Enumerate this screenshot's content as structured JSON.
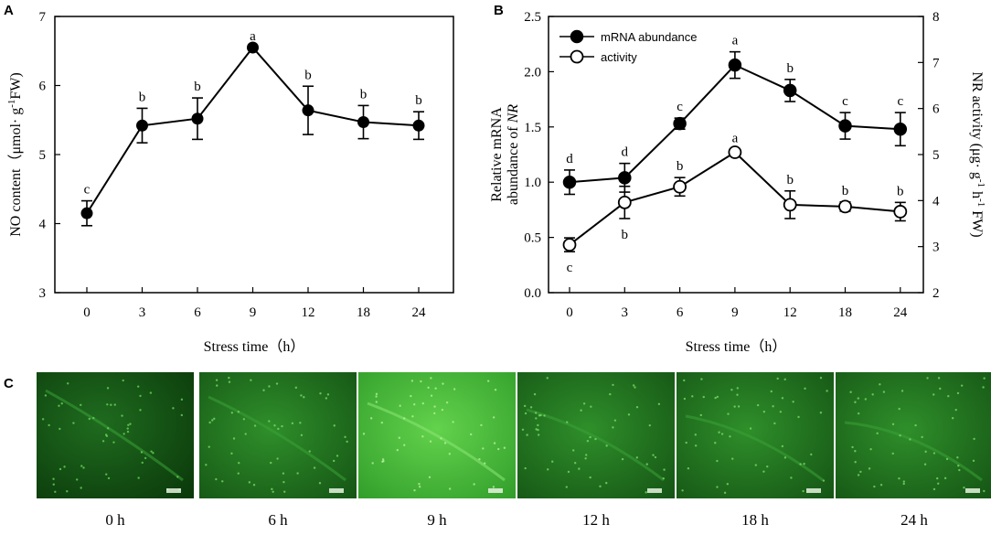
{
  "colors": {
    "line": "#000000",
    "marker_filled": "#000000",
    "marker_open": "#ffffff",
    "background": "#ffffff",
    "tile_dark": "#0a3a0a",
    "tile_mid": "#1f7a1f",
    "tile_bright": "#49c03a"
  },
  "chart_data": [
    {
      "panel": "A",
      "type": "line",
      "categories": [
        "0",
        "3",
        "6",
        "9",
        "12",
        "18",
        "24"
      ],
      "series": [
        {
          "name": "NO content",
          "marker": "filled-circle",
          "values": [
            4.15,
            5.42,
            5.52,
            6.55,
            5.64,
            5.47,
            5.42
          ],
          "errors": [
            0.18,
            0.25,
            0.3,
            0.0,
            0.35,
            0.24,
            0.2
          ],
          "labels": [
            "c",
            "b",
            "b",
            "a",
            "b",
            "b",
            "b"
          ]
        }
      ],
      "xlabel": "Stress time（h）",
      "ylabel_main": "NO content（μmol· g",
      "ylabel_sup": "-1",
      "ylabel_sub": "FW)",
      "ylim": [
        3,
        7
      ],
      "yticks": [
        "3",
        "4",
        "5",
        "6",
        "7"
      ]
    },
    {
      "panel": "B",
      "type": "line",
      "categories": [
        "0",
        "3",
        "6",
        "9",
        "12",
        "18",
        "24"
      ],
      "legend": [
        "mRNA abundance",
        "activity"
      ],
      "legend_position": "top-left",
      "series": [
        {
          "name": "mRNA abundance",
          "marker": "filled-circle",
          "axis": "left",
          "values": [
            1.0,
            1.04,
            1.53,
            2.06,
            1.83,
            1.51,
            1.48
          ],
          "errors": [
            0.11,
            0.13,
            0.05,
            0.12,
            0.1,
            0.12,
            0.15
          ],
          "labels": [
            "d",
            "d",
            "c",
            "a",
            "b",
            "c",
            "c"
          ]
        },
        {
          "name": "activity",
          "marker": "open-circle",
          "axis": "right",
          "values": [
            3.04,
            3.96,
            4.3,
            5.05,
            3.91,
            3.87,
            3.76
          ],
          "errors": [
            0.15,
            0.35,
            0.2,
            0.06,
            0.3,
            0.1,
            0.2
          ],
          "labels": [
            "c",
            "b",
            "b",
            "a",
            "b",
            "b",
            "b"
          ]
        }
      ],
      "xlabel": "Stress time（h）",
      "ylabel_left_line1": "Relative mRNA",
      "ylabel_left_line2": "abundance of ",
      "ylabel_left_italic": "NR",
      "ylabel_right_main": "NR activity (μg· g",
      "ylabel_right_sup1": "-1",
      "ylabel_right_mid": " h",
      "ylabel_right_sup2": "-1",
      "ylabel_right_end": " FW)",
      "ylim_left": [
        0,
        2.5
      ],
      "yticks_left": [
        "0.0",
        "0.5",
        "1.0",
        "1.5",
        "2.0",
        "2.5"
      ],
      "ylim_right": [
        2,
        8
      ],
      "yticks_right": [
        "2",
        "3",
        "4",
        "5",
        "6",
        "7",
        "8"
      ]
    }
  ],
  "panel_labels": {
    "a": "A",
    "b": "B",
    "c": "C"
  },
  "micrographs": [
    {
      "label": "0 h",
      "tone": "dark"
    },
    {
      "label": "6 h",
      "tone": "mid"
    },
    {
      "label": "9 h",
      "tone": "bright"
    },
    {
      "label": "12 h",
      "tone": "mid"
    },
    {
      "label": "18 h",
      "tone": "mid"
    },
    {
      "label": "24 h",
      "tone": "mid"
    }
  ]
}
